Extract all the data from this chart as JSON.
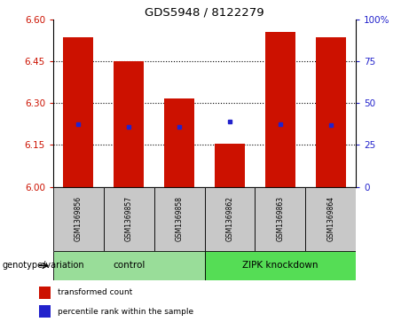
{
  "title": "GDS5948 / 8122279",
  "samples": [
    "GSM1369856",
    "GSM1369857",
    "GSM1369858",
    "GSM1369862",
    "GSM1369863",
    "GSM1369864"
  ],
  "bar_tops": [
    6.535,
    6.45,
    6.315,
    6.155,
    6.555,
    6.535
  ],
  "bar_bottom": 6.0,
  "percentile_values": [
    6.225,
    6.215,
    6.215,
    6.235,
    6.225,
    6.22
  ],
  "ylim": [
    6.0,
    6.6
  ],
  "yticks_left": [
    6.0,
    6.15,
    6.3,
    6.45,
    6.6
  ],
  "yticks_right": [
    0,
    25,
    50,
    75,
    100
  ],
  "bar_color": "#cc1100",
  "dot_color": "#2222cc",
  "bar_width": 0.6,
  "group_labels": [
    "control",
    "ZIPK knockdown"
  ],
  "group_colors": [
    "#99dd99",
    "#55dd55"
  ],
  "group_ranges": [
    [
      0,
      3
    ],
    [
      3,
      6
    ]
  ],
  "genotype_label": "genotype/variation",
  "legend_items": [
    "transformed count",
    "percentile rank within the sample"
  ],
  "legend_colors": [
    "#cc1100",
    "#2222cc"
  ],
  "sample_bg_color": "#c8c8c8",
  "bg_color": "#ffffff"
}
